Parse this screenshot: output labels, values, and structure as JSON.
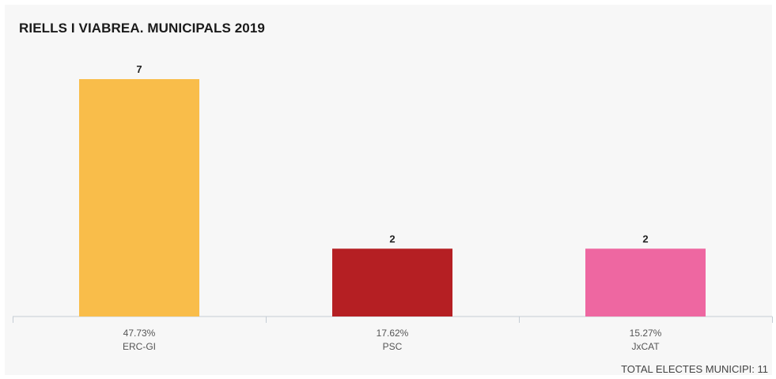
{
  "title": "RIELLS I VIABREA. MUNICIPALS 2019",
  "footer": {
    "total_label": "TOTAL ELECTES MUNICIPI: 11"
  },
  "chart_data": {
    "type": "bar",
    "title": "RIELLS I VIABREA. MUNICIPALS 2019",
    "categories": [
      "ERC-GI",
      "PSC",
      "JxCAT"
    ],
    "values": [
      7,
      2,
      2
    ],
    "percentages": [
      "47.73%",
      "17.62%",
      "15.27%"
    ],
    "colors": [
      "#f9bd4a",
      "#b51f23",
      "#ee67a1"
    ],
    "ylim": [
      0,
      7
    ],
    "grid": false,
    "legend": "none",
    "xlabel": "",
    "ylabel": ""
  }
}
